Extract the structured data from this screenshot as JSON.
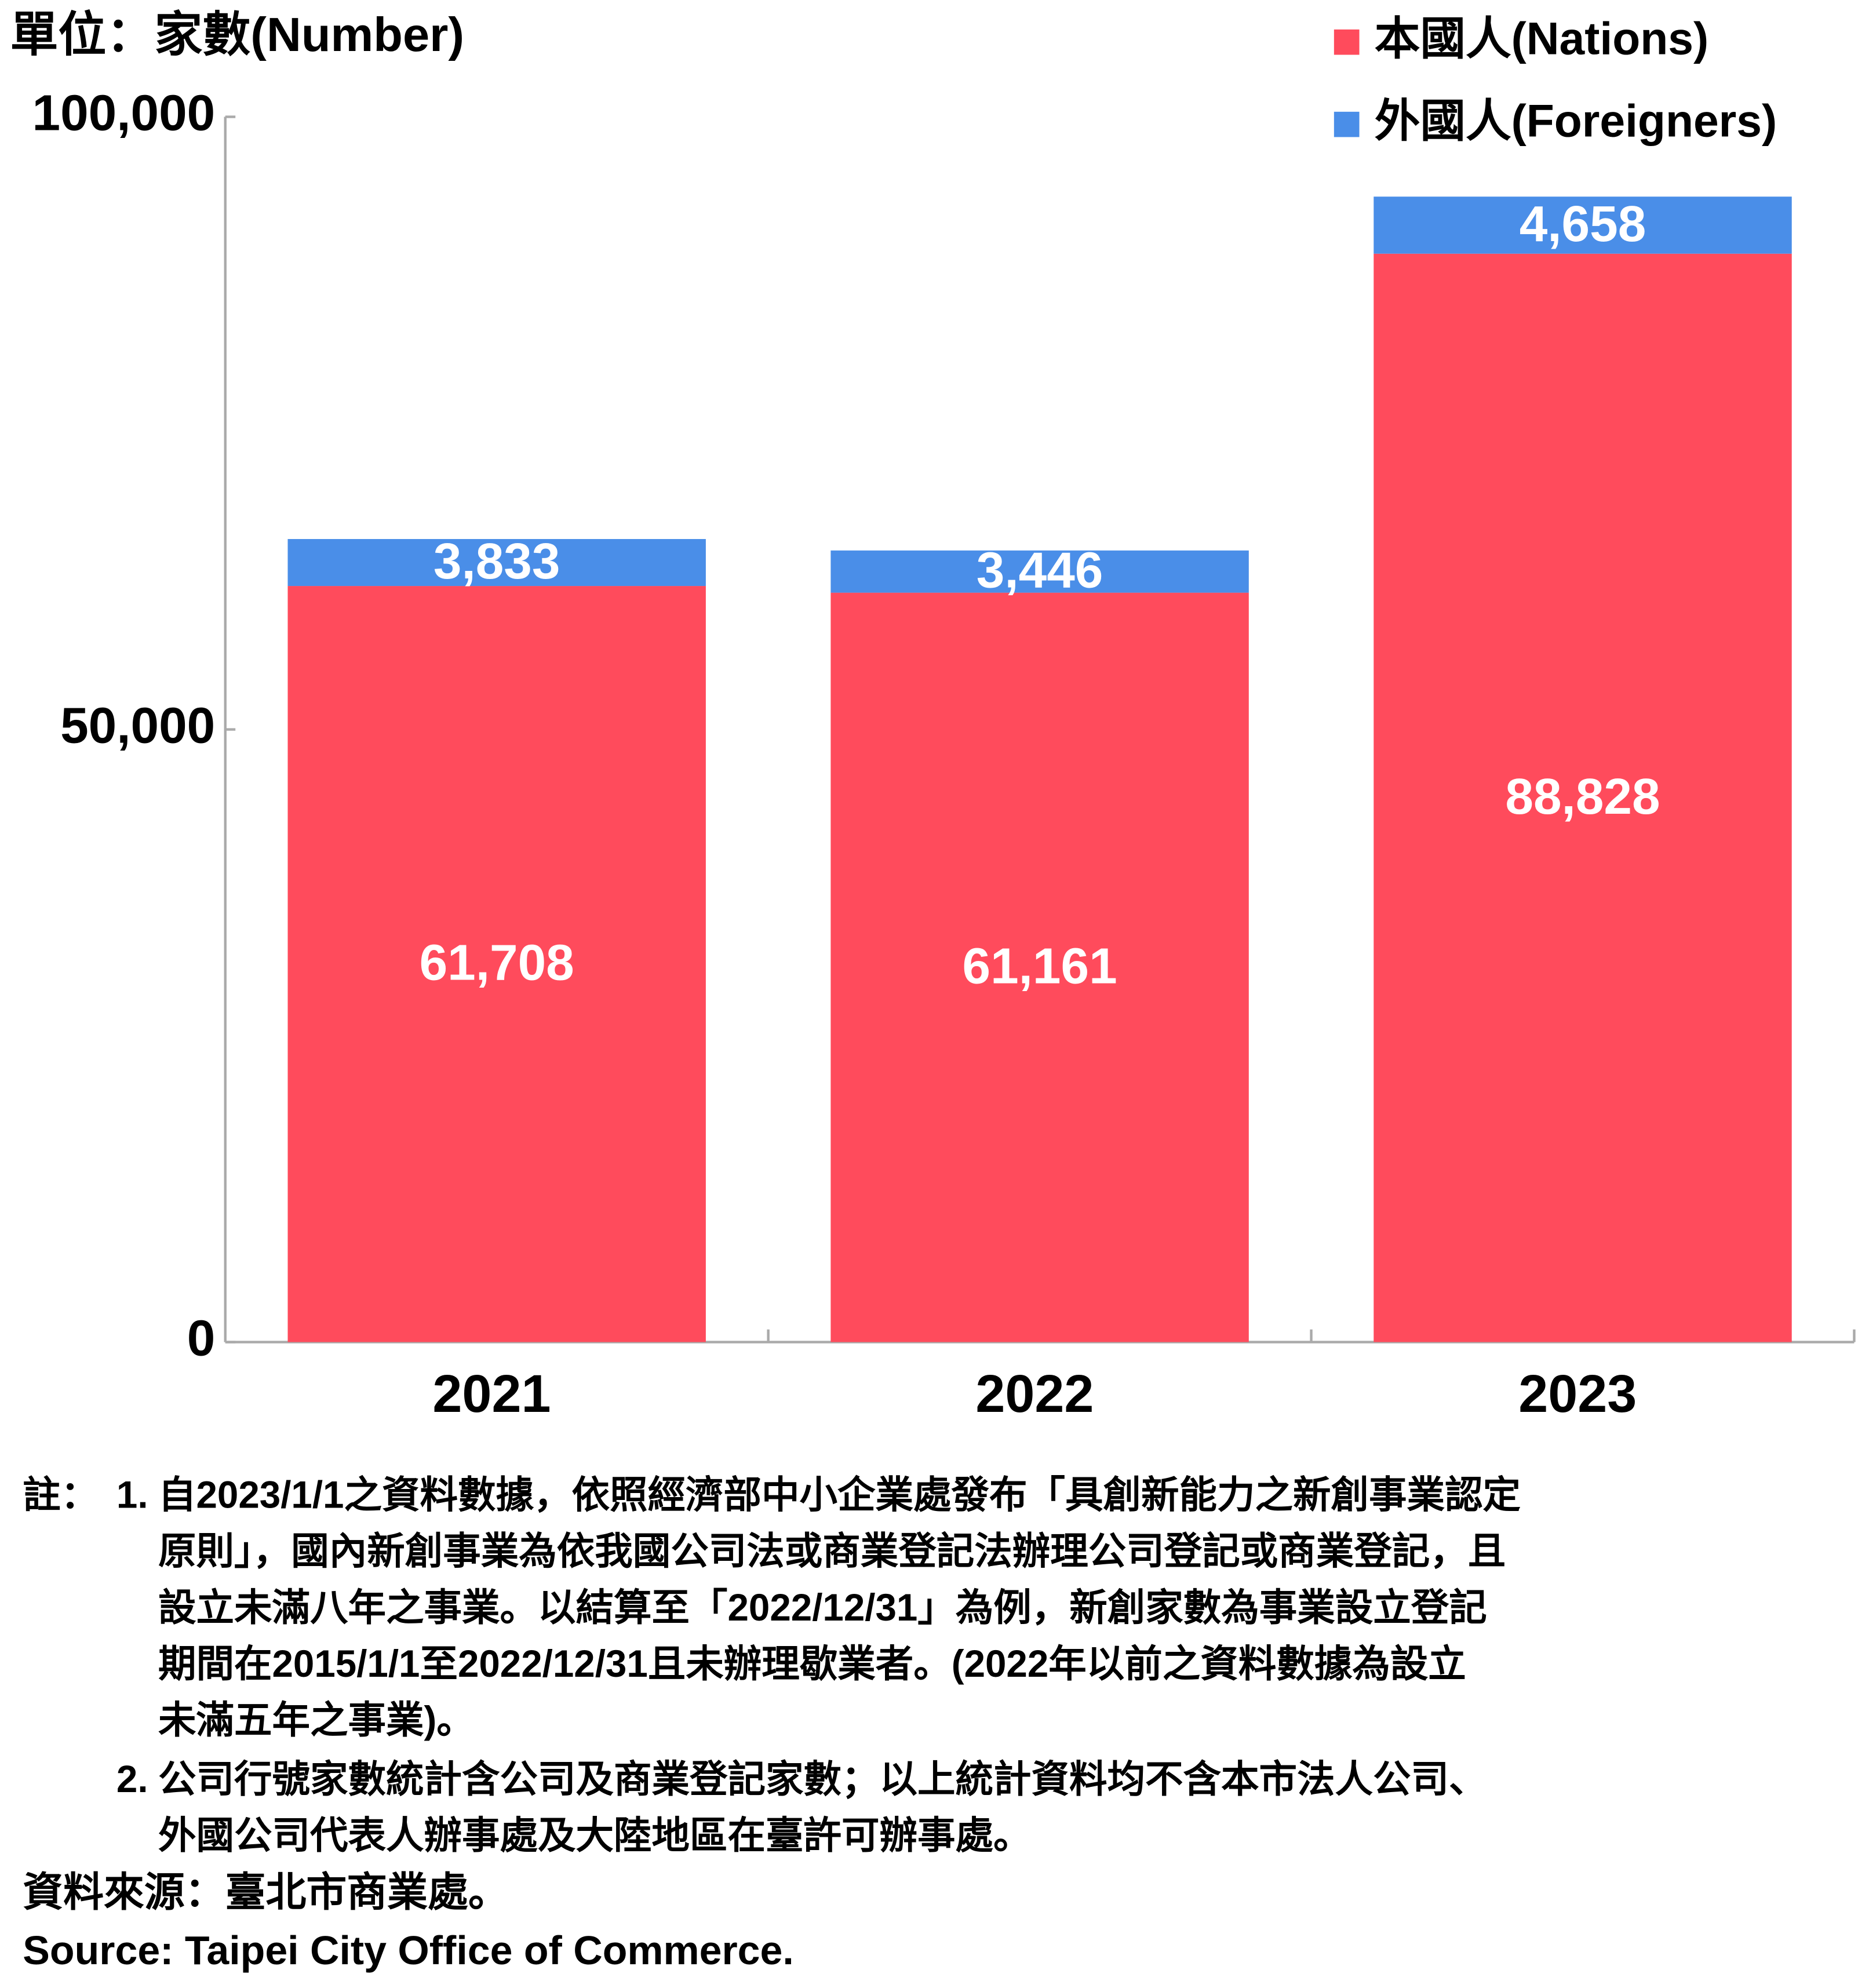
{
  "chart_data": {
    "type": "stacked_bar",
    "title": "單位：家數(Number)",
    "categories": [
      "2021",
      "2022",
      "2023"
    ],
    "series": [
      {
        "name": "本國人(Nations)",
        "color": "#ff4b5c",
        "values": [
          61708,
          61161,
          88828
        ],
        "value_labels": [
          "61,708",
          "61,161",
          "88,828"
        ]
      },
      {
        "name": "外國人(Foreigners)",
        "color": "#4a8ee8",
        "values": [
          3833,
          3446,
          4658
        ],
        "value_labels": [
          "3,833",
          "3,446",
          "4,658"
        ]
      }
    ],
    "ylim": [
      0,
      100000
    ],
    "yticks": [
      0,
      {
        "value": 50000,
        "label": "50,000"
      },
      {
        "value": 100000,
        "label": "100,000"
      }
    ],
    "legend": "top-right"
  },
  "notes": {
    "label": "註：",
    "items": [
      {
        "number": "1.",
        "lines": [
          "自2023/1/1之資料數據，依照經濟部中小企業處發布「具創新能力之新創事業認定",
          "原則」，國內新創事業為依我國公司法或商業登記法辦理公司登記或商業登記，且",
          "設立未滿八年之事業。以結算至「2022/12/31」為例，新創家數為事業設立登記",
          "期間在2015/1/1至2022/12/31且未辦理歇業者。(2022年以前之資料數據為設立",
          "未滿五年之事業)。"
        ]
      },
      {
        "number": "2.",
        "lines": [
          "公司行號家數統計含公司及商業登記家數；以上統計資料均不含本市法人公司、",
          "外國公司代表人辦事處及大陸地區在臺許可辦事處。"
        ]
      }
    ]
  },
  "source": {
    "lines": [
      "資料來源：臺北市商業處。",
      "Source: Taipei City Office of Commerce."
    ]
  }
}
